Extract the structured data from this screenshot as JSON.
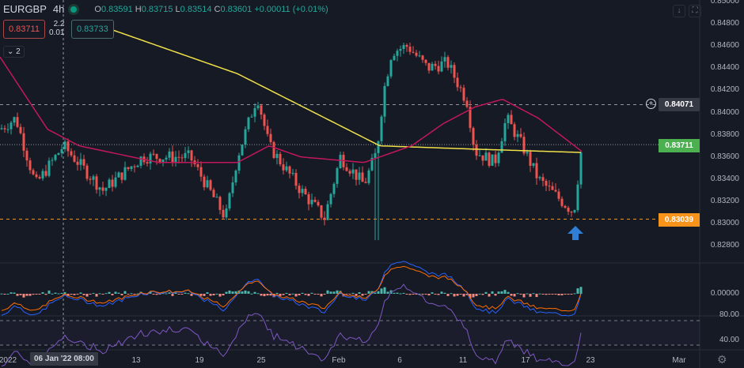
{
  "header": {
    "symbol": "EURGBP",
    "interval": "4h",
    "ohlc": {
      "o_label": "O",
      "o": "0.83591",
      "h_label": "H",
      "h": "0.83715",
      "l_label": "L",
      "l": "0.83514",
      "c_label": "C",
      "c": "0.83601",
      "change": "+0.00011 (+0.01%)"
    }
  },
  "indicators": {
    "ma1_value": "0.83711",
    "ma_params_1": "2.2",
    "ma_params_2": "0.01",
    "ma2_value": "0.83733",
    "collapse_count": "2"
  },
  "price_axis": {
    "ticks": [
      "0.85000",
      "0.84800",
      "0.84600",
      "0.84400",
      "0.84200",
      "0.84000",
      "0.83800",
      "0.83600",
      "0.83400",
      "0.83200",
      "0.83000",
      "0.82800"
    ],
    "macd_tick": "0.00000",
    "rsi_ticks": [
      "80.00",
      "40.00"
    ]
  },
  "tags": {
    "alert_line": "0.84071",
    "last_price": "0.83711",
    "support": "0.83039"
  },
  "time_axis": {
    "ticks": [
      "2022",
      "13",
      "19",
      "25",
      "Feb",
      "6",
      "11",
      "17",
      "23",
      "Mar"
    ],
    "crosshair": "06 Jan '22  08:00"
  },
  "colors": {
    "up": "#26a69a",
    "down": "#ef5350",
    "ma_slow": "#f0e04a",
    "ma_fast": "#c2185b",
    "support": "#f7931a",
    "last": "#4caf50",
    "arrow": "#2f7fd6",
    "rsi": "#7e57c2"
  },
  "chart_data": {
    "type": "candlestick",
    "price_path": [
      [
        0,
        0.8385
      ],
      [
        20,
        0.8395
      ],
      [
        45,
        0.8335
      ],
      [
        80,
        0.837
      ],
      [
        130,
        0.833
      ],
      [
        180,
        0.836
      ],
      [
        240,
        0.836
      ],
      [
        285,
        0.8305
      ],
      [
        300,
        0.836
      ],
      [
        325,
        0.8415
      ],
      [
        340,
        0.837
      ],
      [
        380,
        0.833
      ],
      [
        410,
        0.8305
      ],
      [
        430,
        0.836
      ],
      [
        460,
        0.8335
      ],
      [
        476,
        0.8365
      ],
      [
        485,
        0.842
      ],
      [
        495,
        0.8455
      ],
      [
        515,
        0.846
      ],
      [
        540,
        0.844
      ],
      [
        565,
        0.8445
      ],
      [
        590,
        0.841
      ],
      [
        600,
        0.8365
      ],
      [
        625,
        0.8355
      ],
      [
        640,
        0.8395
      ],
      [
        660,
        0.837
      ],
      [
        680,
        0.834
      ],
      [
        710,
        0.832
      ],
      [
        725,
        0.831
      ],
      [
        735,
        0.837
      ]
    ],
    "ma_slow": [
      [
        140,
        0.8475
      ],
      [
        300,
        0.8435
      ],
      [
        480,
        0.837
      ],
      [
        600,
        0.8367
      ],
      [
        735,
        0.8364
      ]
    ],
    "ma_fast": [
      [
        0,
        0.845
      ],
      [
        60,
        0.8385
      ],
      [
        100,
        0.837
      ],
      [
        200,
        0.8355
      ],
      [
        300,
        0.8355
      ],
      [
        340,
        0.837
      ],
      [
        380,
        0.836
      ],
      [
        460,
        0.8355
      ],
      [
        520,
        0.837
      ],
      [
        560,
        0.839
      ],
      [
        600,
        0.8405
      ],
      [
        635,
        0.8412
      ],
      [
        680,
        0.8395
      ],
      [
        735,
        0.8365
      ]
    ],
    "ylim": [
      0.827,
      0.85
    ]
  }
}
